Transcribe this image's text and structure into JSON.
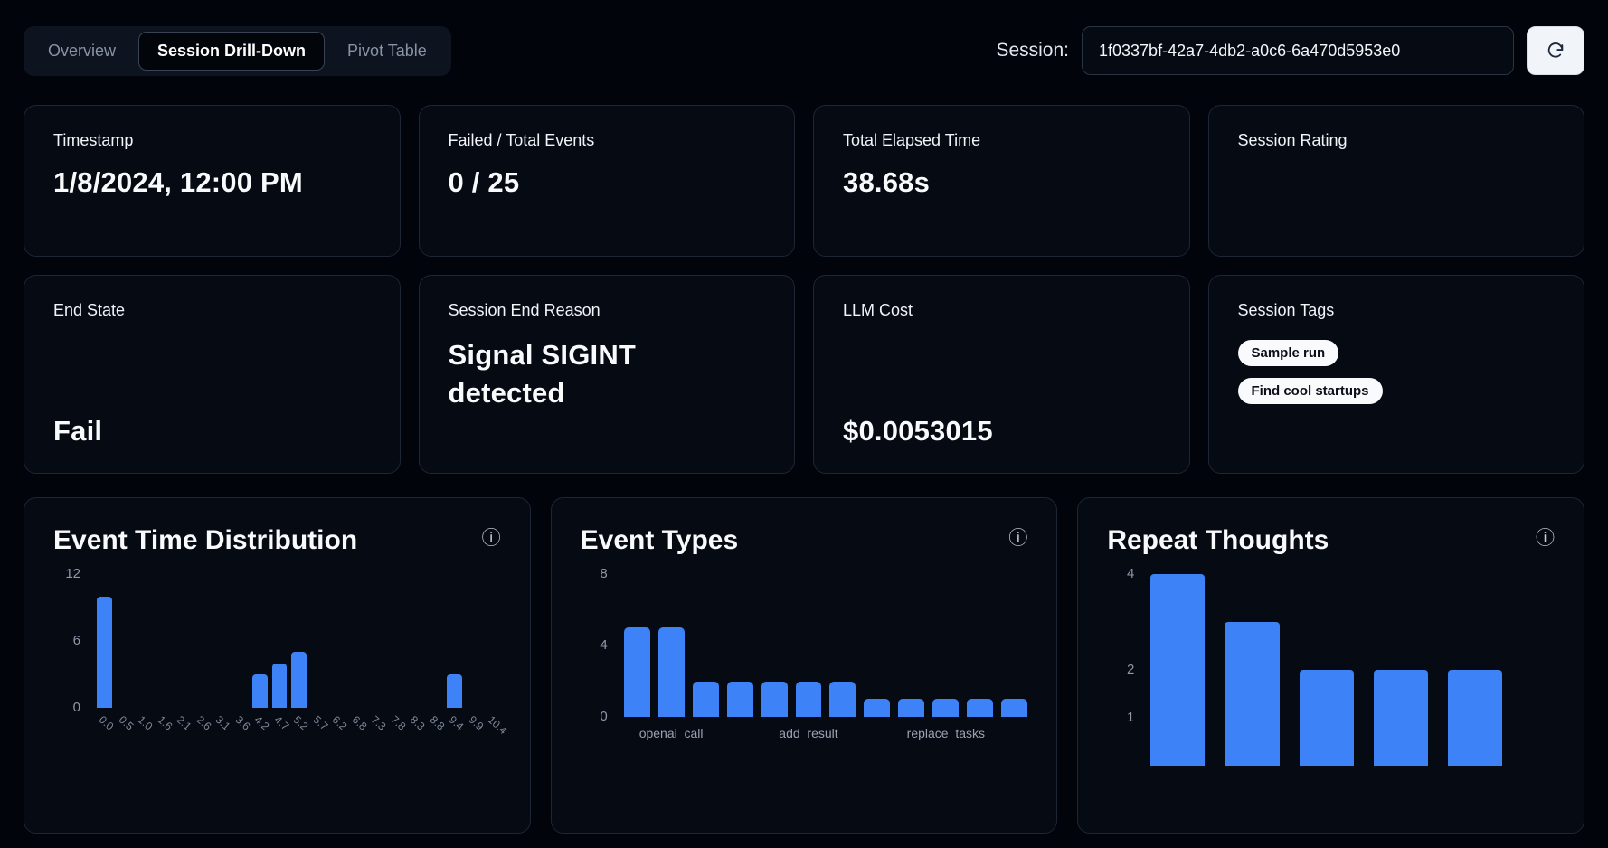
{
  "tabs": [
    {
      "label": "Overview",
      "active": false
    },
    {
      "label": "Session Drill-Down",
      "active": true
    },
    {
      "label": "Pivot Table",
      "active": false
    }
  ],
  "session": {
    "label": "Session:",
    "id": "1f0337bf-42a7-4db2-a0c6-6a470d5953e0"
  },
  "stats": [
    {
      "label": "Timestamp",
      "value": "1/8/2024, 12:00 PM"
    },
    {
      "label": "Failed / Total Events",
      "value": "0 / 25"
    },
    {
      "label": "Total Elapsed Time",
      "value": "38.68s"
    },
    {
      "label": "Session Rating",
      "value": ""
    },
    {
      "label": "End State",
      "value": "Fail"
    },
    {
      "label": "Session End Reason",
      "value": "Signal SIGINT detected"
    },
    {
      "label": "LLM Cost",
      "value": "$0.0053015"
    },
    {
      "label": "Session Tags",
      "tags": [
        "Sample run",
        "Find cool startups"
      ]
    }
  ],
  "icons": {
    "info": "ⓘ"
  },
  "colors": {
    "bar": "#3d82f6",
    "card_border": "#1d2636",
    "background": "#01040a"
  },
  "chart_data": [
    {
      "type": "bar",
      "title": "Event Time Distribution",
      "categories": [
        "0.0",
        "0.5",
        "1.0",
        "1.6",
        "2.1",
        "2.6",
        "3.1",
        "3.6",
        "4.2",
        "4.7",
        "5.2",
        "5.7",
        "6.2",
        "6.8",
        "7.3",
        "7.8",
        "8.3",
        "8.8",
        "9.4",
        "9.9",
        "10.4"
      ],
      "values": [
        10,
        0,
        0,
        0,
        0,
        0,
        0,
        0,
        3,
        4,
        5,
        0,
        0,
        0,
        0,
        0,
        0,
        0,
        3,
        0,
        0
      ],
      "xlabel": "",
      "ylabel": "",
      "ylim": [
        0,
        12
      ],
      "yticks": [
        0,
        6,
        12
      ],
      "xlabel_rotation": 45,
      "show_all_xlabels": true,
      "legend": false,
      "grid": false
    },
    {
      "type": "bar",
      "title": "Event Types",
      "categories": [
        "openai_call",
        "openai_call",
        "",
        "",
        "",
        "add_result",
        "",
        "",
        "",
        "replace_tasks",
        "",
        ""
      ],
      "values": [
        5,
        5,
        2,
        2,
        2,
        2,
        2,
        1,
        1,
        1,
        1,
        1
      ],
      "xlabel": "",
      "ylabel": "",
      "ylim": [
        0,
        8
      ],
      "yticks": [
        0,
        4,
        8
      ],
      "xticks": [
        {
          "index": 1,
          "label": "openai_call"
        },
        {
          "index": 5,
          "label": "add_result"
        },
        {
          "index": 9,
          "label": "replace_tasks"
        }
      ],
      "legend": false,
      "grid": false
    },
    {
      "type": "bar",
      "title": "Repeat Thoughts",
      "categories": [
        "",
        "",
        "",
        "",
        ""
      ],
      "values": [
        4,
        3,
        2,
        2,
        2
      ],
      "xlabel": "",
      "ylabel": "",
      "ylim": [
        0,
        4
      ],
      "yticks": [
        1,
        2,
        4
      ],
      "legend": false,
      "grid": false
    }
  ]
}
